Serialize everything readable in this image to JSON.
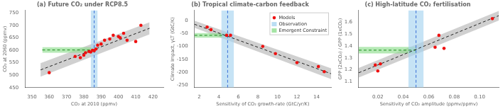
{
  "chart_data": [
    {
      "type": "scatter",
      "title": "(a) Future CO₂ under RCP8.5",
      "xlabel": "CO₂ at 2010 (ppmv)",
      "ylabel": "CO₂ at 2060 (ppmv)",
      "xlim": [
        346,
        426
      ],
      "ylim": [
        450,
        760
      ],
      "xticks": [
        350,
        360,
        370,
        380,
        390,
        400,
        410,
        420
      ],
      "yticks": [
        450,
        500,
        550,
        600,
        650,
        700,
        750
      ],
      "grid": false,
      "series": [
        {
          "type": "scatter",
          "color": "#ee1111",
          "marker": "circle",
          "x": [
            360,
            375,
            378,
            380,
            381,
            383,
            384,
            385,
            386,
            387,
            388,
            390,
            392,
            395,
            397,
            400,
            401,
            403,
            405,
            410,
            413
          ],
          "values": [
            510,
            575,
            570,
            580,
            590,
            595,
            593,
            600,
            598,
            605,
            620,
            625,
            640,
            645,
            660,
            655,
            650,
            668,
            640,
            635,
            700
          ]
        },
        {
          "type": "line",
          "color": "#222222",
          "line_style": "dashed",
          "x": [
            355,
            418
          ],
          "values": [
            521,
            688
          ]
        },
        {
          "type": "band",
          "color": "#aaaaaa",
          "x": [
            355,
            418
          ],
          "upper": [
            548,
            712
          ],
          "lower": [
            494,
            664
          ]
        },
        {
          "type": "vspan",
          "color": "#a8d4f0",
          "xmin": 384.0,
          "xmax": 388.0
        },
        {
          "type": "vline",
          "color": "#3a6fd8",
          "line_style": "dashed",
          "x": 386.0
        },
        {
          "type": "hspan",
          "color": "#8fdd8f",
          "xmin": 356,
          "xmax": 386.0,
          "ymin": 590,
          "ymax": 612
        },
        {
          "type": "line",
          "color": "#1a8c1a",
          "line_style": "dashed",
          "x": [
            356,
            386.0
          ],
          "values": [
            601,
            601
          ]
        }
      ]
    },
    {
      "type": "scatter",
      "title": "(b) Tropical climate-carbon feedback",
      "xlabel": "Sensitivity of CO₂ growth-rate (GtC/yr/K)",
      "ylabel": "Climate Impact, γLT (GtC/K)",
      "xlim": [
        1.5,
        15.5
      ],
      "ylim": [
        -260,
        40
      ],
      "xticks": [
        2,
        4,
        6,
        8,
        10,
        12,
        14
      ],
      "yticks": [
        -250,
        -200,
        -150,
        -100,
        -50,
        0
      ],
      "grid": false,
      "legend": "upper right",
      "series": [
        {
          "name": "Models",
          "type": "scatter",
          "color": "#ee1111",
          "marker": "circle",
          "x": [
            2.8,
            3.2,
            4.8,
            5.2,
            8.5,
            9.8,
            12.0,
            14.2,
            14.8
          ],
          "values": [
            -25,
            -35,
            -57,
            -57,
            -100,
            -128,
            -163,
            -178,
            -198
          ]
        },
        {
          "type": "line",
          "color": "#222222",
          "line_style": "dashed",
          "x": [
            1.5,
            15.5
          ],
          "values": [
            -14,
            -206
          ]
        },
        {
          "type": "band",
          "color": "#aaaaaa",
          "x": [
            1.5,
            15.5
          ],
          "upper": [
            0,
            -185
          ],
          "lower": [
            -28,
            -227
          ]
        },
        {
          "name": "Observation",
          "type": "vspan",
          "color": "#a8d4f0",
          "xmin": 4.25,
          "xmax": 5.55
        },
        {
          "type": "vline",
          "color": "#3a6fd8",
          "line_style": "dashed",
          "x": 4.9
        },
        {
          "name": "Emergent Constraint",
          "type": "hspan",
          "color": "#8fdd8f",
          "xmin": 1.5,
          "xmax": 4.9,
          "ymin": -66,
          "ymax": -48
        },
        {
          "type": "line",
          "color": "#1a8c1a",
          "line_style": "dashed",
          "x": [
            1.5,
            4.9
          ],
          "values": [
            -57,
            -57
          ]
        }
      ]
    },
    {
      "type": "scatter",
      "title": "(c) High-latitude CO₂ fertilisation",
      "xlabel": "Sensitivity of CO₂ amplitude (ppmv/ppmv)",
      "ylabel": "GPP (2xCO₂) / GPP (1xCO₂)",
      "xlim": [
        0.005,
        0.115
      ],
      "ylim": [
        1.05,
        1.7
      ],
      "xticks": [
        0.02,
        0.04,
        0.06,
        0.08,
        {
          "value": 0.1,
          "label": "0.10"
        }
      ],
      "yticks": [
        1.1,
        1.2,
        1.3,
        1.4,
        1.5,
        1.6
      ],
      "grid": false,
      "series": [
        {
          "type": "scatter",
          "color": "#ee1111",
          "marker": "circle",
          "x": [
            0.018,
            0.02,
            0.022,
            0.065,
            0.068,
            0.072,
            0.11
          ],
          "values": [
            1.24,
            1.19,
            1.25,
            1.39,
            1.49,
            1.38,
            1.63
          ]
        },
        {
          "type": "line",
          "color": "#222222",
          "line_style": "dashed",
          "x": [
            0.005,
            0.115
          ],
          "values": [
            1.175,
            1.655
          ]
        },
        {
          "type": "band",
          "color": "#aaaaaa",
          "x": [
            0.005,
            0.115
          ],
          "upper": [
            1.215,
            1.695
          ],
          "lower": [
            1.135,
            1.615
          ]
        },
        {
          "type": "vspan",
          "color": "#a8d4f0",
          "xmin": 0.044,
          "xmax": 0.056
        },
        {
          "type": "vline",
          "color": "#3a6fd8",
          "line_style": "dashed",
          "x": 0.05
        },
        {
          "type": "hspan",
          "color": "#8fdd8f",
          "xmin": 0.005,
          "xmax": 0.05,
          "ymin": 1.3375,
          "ymax": 1.3925
        },
        {
          "type": "line",
          "color": "#1a8c1a",
          "line_style": "dashed",
          "x": [
            0.005,
            0.05
          ],
          "values": [
            1.365,
            1.365
          ]
        }
      ]
    }
  ]
}
